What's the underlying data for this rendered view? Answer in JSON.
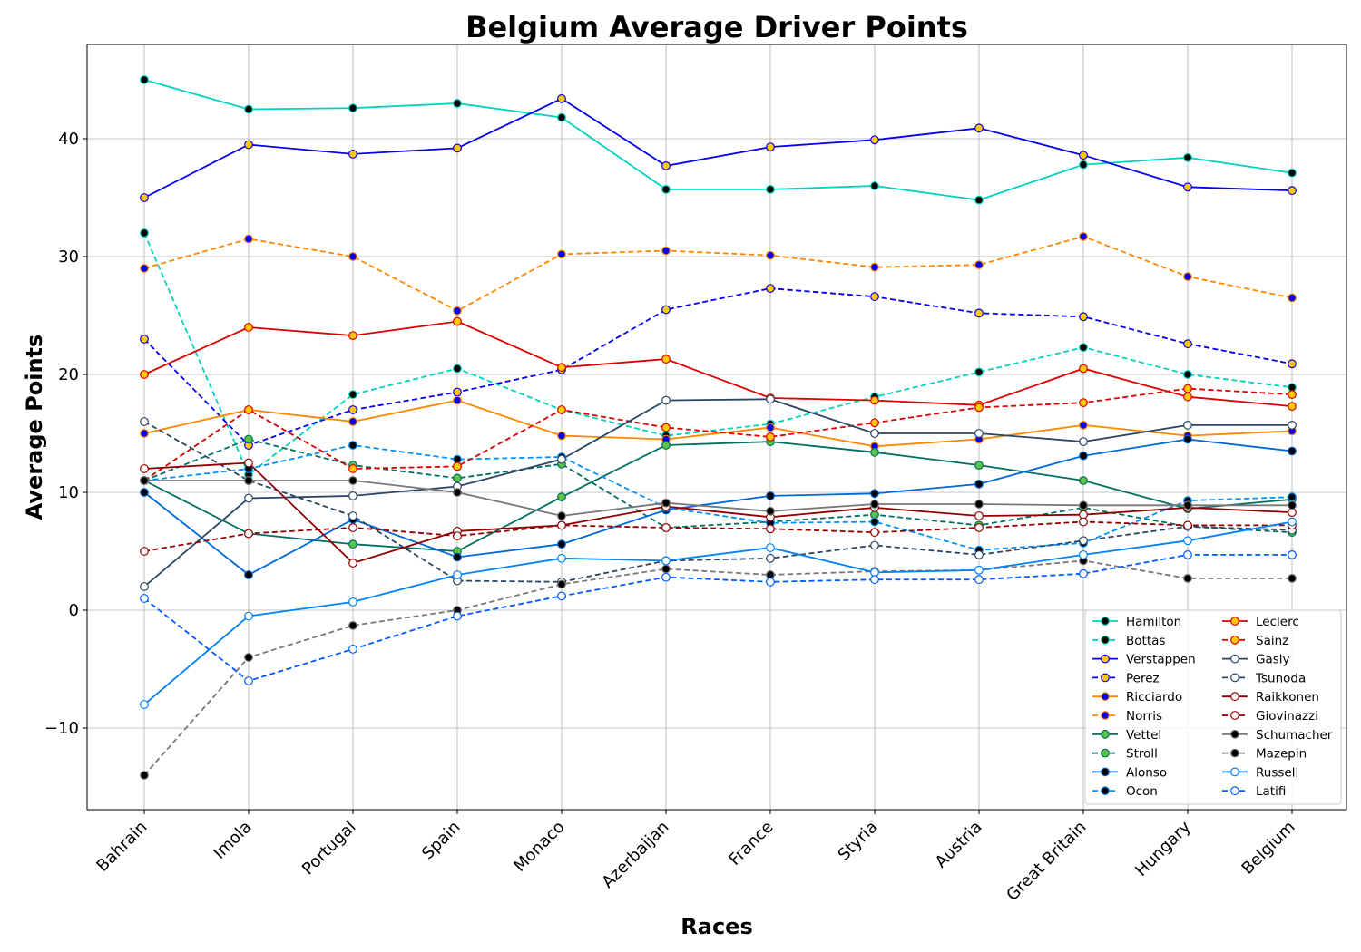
{
  "chart_data": {
    "type": "line",
    "title": "Belgium Average Driver Points",
    "xlabel": "Races",
    "ylabel": "Average Points",
    "categories": [
      "Bahrain",
      "Imola",
      "Portugal",
      "Spain",
      "Monaco",
      "Azerbaijan",
      "France",
      "Styria",
      "Austria",
      "Great Britain",
      "Hungary",
      "Belgium"
    ],
    "ylim": [
      -17,
      48
    ],
    "yticks": [
      -10,
      0,
      10,
      20,
      30,
      40
    ],
    "ytick_labels": [
      "−10",
      "0",
      "10",
      "20",
      "30",
      "40"
    ],
    "grid": true,
    "legend_position": "lower-right",
    "legend_columns": 2,
    "series": [
      {
        "name": "Hamilton",
        "color": "#00d2be",
        "dash": false,
        "marker_fill": "#000000",
        "marker_edge": "#00d2be",
        "values": [
          45.0,
          42.5,
          42.6,
          43.0,
          41.8,
          35.7,
          35.7,
          36.0,
          34.8,
          37.8,
          38.4,
          37.1
        ]
      },
      {
        "name": "Bottas",
        "color": "#00d2be",
        "dash": true,
        "marker_fill": "#000000",
        "marker_edge": "#00d2be",
        "values": [
          32.0,
          11.5,
          18.3,
          20.5,
          17.0,
          14.8,
          15.8,
          18.1,
          20.2,
          22.3,
          20.0,
          18.9
        ]
      },
      {
        "name": "Verstappen",
        "color": "#0600ef",
        "dash": false,
        "marker_fill": "#ffc906",
        "marker_edge": "#0600ef",
        "values": [
          35.0,
          39.5,
          38.7,
          39.2,
          43.4,
          37.7,
          39.3,
          39.9,
          40.9,
          38.6,
          35.9,
          35.6
        ]
      },
      {
        "name": "Perez",
        "color": "#0600ef",
        "dash": true,
        "marker_fill": "#ffc906",
        "marker_edge": "#0600ef",
        "values": [
          23.0,
          14.0,
          17.0,
          18.5,
          20.4,
          25.5,
          27.3,
          26.6,
          25.2,
          24.9,
          22.6,
          20.9
        ]
      },
      {
        "name": "Ricciardo",
        "color": "#ff8700",
        "dash": false,
        "marker_fill": "#0600ef",
        "marker_edge": "#ff8700",
        "values": [
          15.0,
          17.0,
          16.0,
          17.8,
          14.8,
          14.5,
          15.5,
          13.9,
          14.5,
          15.7,
          14.8,
          15.2
        ]
      },
      {
        "name": "Norris",
        "color": "#ff8700",
        "dash": true,
        "marker_fill": "#0600ef",
        "marker_edge": "#ff8700",
        "values": [
          29.0,
          31.5,
          30.0,
          25.4,
          30.2,
          30.5,
          30.1,
          29.1,
          29.3,
          31.7,
          28.3,
          26.5
        ]
      },
      {
        "name": "Vettel",
        "color": "#006f62",
        "dash": false,
        "marker_fill": "#5cc547",
        "marker_edge": "#006f62",
        "values": [
          11.0,
          6.5,
          5.6,
          5.0,
          9.6,
          14.0,
          14.3,
          13.4,
          12.3,
          11.0,
          8.6,
          9.4
        ]
      },
      {
        "name": "Stroll",
        "color": "#006f62",
        "dash": true,
        "marker_fill": "#5cc547",
        "marker_edge": "#006f62",
        "values": [
          11.0,
          14.5,
          12.3,
          11.2,
          12.4,
          7.0,
          7.5,
          8.1,
          7.2,
          8.7,
          7.1,
          6.6
        ]
      },
      {
        "name": "Alonso",
        "color": "#0068d8",
        "dash": false,
        "marker_fill": "#000000",
        "marker_edge": "#0068d8",
        "values": [
          10.0,
          3.0,
          7.7,
          4.5,
          5.6,
          8.5,
          9.7,
          9.9,
          10.7,
          13.1,
          14.5,
          13.5
        ]
      },
      {
        "name": "Ocon",
        "color": "#0090ff",
        "dash": true,
        "marker_fill": "#000000",
        "marker_edge": "#0090ff",
        "values": [
          11.0,
          12.0,
          14.0,
          12.8,
          13.0,
          8.7,
          7.4,
          7.5,
          5.1,
          5.7,
          9.3,
          9.6
        ]
      },
      {
        "name": "Leclerc",
        "color": "#dc0000",
        "dash": false,
        "marker_fill": "#ffc906",
        "marker_edge": "#dc0000",
        "values": [
          20.0,
          24.0,
          23.3,
          24.5,
          20.6,
          21.3,
          18.0,
          17.8,
          17.4,
          20.5,
          18.1,
          17.3
        ]
      },
      {
        "name": "Sainz",
        "color": "#dc0000",
        "dash": true,
        "marker_fill": "#ffc906",
        "marker_edge": "#dc0000",
        "values": [
          11.0,
          17.0,
          12.0,
          12.2,
          17.0,
          15.5,
          14.7,
          15.9,
          17.2,
          17.6,
          18.8,
          18.3
        ]
      },
      {
        "name": "Gasly",
        "color": "#2b4562",
        "dash": false,
        "marker_fill": "#ffffff",
        "marker_edge": "#2b4562",
        "values": [
          2.0,
          9.5,
          9.7,
          10.5,
          12.8,
          17.8,
          17.9,
          15.0,
          15.0,
          14.3,
          15.7,
          15.7
        ]
      },
      {
        "name": "Tsunoda",
        "color": "#2b4562",
        "dash": true,
        "marker_fill": "#ffffff",
        "marker_edge": "#2b4562",
        "values": [
          16.0,
          11.0,
          8.0,
          2.5,
          2.4,
          4.2,
          4.4,
          5.5,
          4.7,
          5.9,
          7.1,
          6.8
        ]
      },
      {
        "name": "Raikkonen",
        "color": "#900000",
        "dash": false,
        "marker_fill": "#ffffff",
        "marker_edge": "#900000",
        "values": [
          12.0,
          12.5,
          4.0,
          6.7,
          7.2,
          8.8,
          7.9,
          8.7,
          8.0,
          8.1,
          8.7,
          8.3
        ]
      },
      {
        "name": "Giovinazzi",
        "color": "#900000",
        "dash": true,
        "marker_fill": "#ffffff",
        "marker_edge": "#900000",
        "values": [
          5.0,
          6.5,
          7.0,
          6.3,
          7.2,
          7.0,
          6.9,
          6.6,
          7.0,
          7.5,
          7.2,
          7.2
        ]
      },
      {
        "name": "Schumacher",
        "color": "#787878",
        "dash": false,
        "marker_fill": "#000000",
        "marker_edge": "#787878",
        "values": [
          11.0,
          11.0,
          11.0,
          10.0,
          8.0,
          9.1,
          8.4,
          9.0,
          9.0,
          8.9,
          8.9,
          8.9
        ]
      },
      {
        "name": "Mazepin",
        "color": "#787878",
        "dash": true,
        "marker_fill": "#000000",
        "marker_edge": "#787878",
        "values": [
          -14.0,
          -4.0,
          -1.3,
          0.0,
          2.2,
          3.5,
          3.0,
          3.3,
          3.4,
          4.2,
          2.7,
          2.7
        ]
      },
      {
        "name": "Russell",
        "color": "#0082fa",
        "dash": false,
        "marker_fill": "#ffffff",
        "marker_edge": "#0082fa",
        "values": [
          -8.0,
          -0.5,
          0.7,
          3.0,
          4.4,
          4.2,
          5.3,
          3.2,
          3.4,
          4.7,
          5.9,
          7.5
        ]
      },
      {
        "name": "Latifi",
        "color": "#005aff",
        "dash": true,
        "marker_fill": "#ffffff",
        "marker_edge": "#005aff",
        "values": [
          1.0,
          -6.0,
          -3.3,
          -0.5,
          1.2,
          2.8,
          2.4,
          2.6,
          2.6,
          3.1,
          4.7,
          4.7
        ]
      }
    ]
  }
}
